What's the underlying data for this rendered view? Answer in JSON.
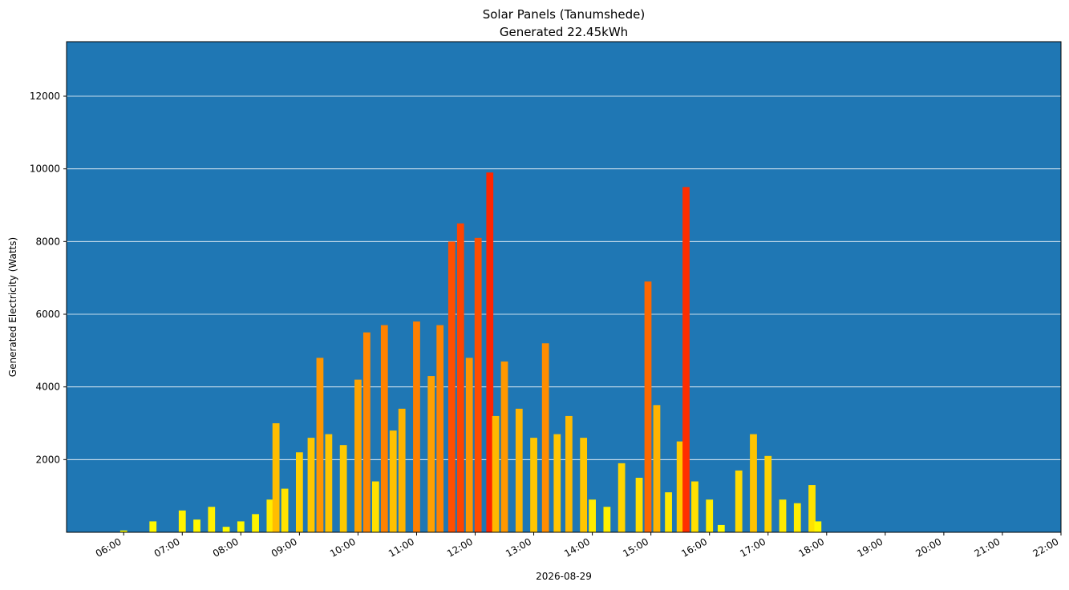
{
  "chart_data": {
    "type": "bar",
    "title": "Solar Panels (Tanumshede)",
    "subtitle": "Generated 22.45kWh",
    "xlabel": "2026-08-29",
    "ylabel": "Generated Electricity (Watts)",
    "ylim": [
      0,
      13500
    ],
    "yticks": [
      "2000",
      "4000",
      "6000",
      "8000",
      "10000",
      "12000"
    ],
    "xticks": [
      "06:00",
      "07:00",
      "08:00",
      "09:00",
      "10:00",
      "11:00",
      "12:00",
      "13:00",
      "14:00",
      "15:00",
      "16:00",
      "17:00",
      "18:00",
      "19:00",
      "20:00",
      "21:00",
      "22:00"
    ],
    "xlim_hours": [
      5.025,
      22.0
    ],
    "background_color": "#1f77b4",
    "grid": "horizontal",
    "bar_colormap": "yellow-to-red by value",
    "series": [
      {
        "x_hours": [
          6.0,
          6.5,
          7.0,
          7.25,
          7.5,
          7.75,
          8.0,
          8.25,
          8.5,
          8.6,
          8.75,
          9.0,
          9.2,
          9.35,
          9.5,
          9.75,
          10.0,
          10.15,
          10.3,
          10.45,
          10.6,
          10.75,
          11.0,
          11.25,
          11.4,
          11.6,
          11.75,
          11.9,
          12.05,
          12.25,
          12.35,
          12.5,
          12.75,
          13.0,
          13.2,
          13.4,
          13.6,
          13.85,
          14.0,
          14.25,
          14.5,
          14.8,
          14.95,
          15.1,
          15.3,
          15.5,
          15.6,
          15.75,
          16.0,
          16.2,
          16.5,
          16.75,
          17.0,
          17.25,
          17.5,
          17.75,
          17.85
        ],
        "values": [
          50,
          300,
          600,
          350,
          700,
          150,
          300,
          500,
          900,
          3000,
          1200,
          2200,
          2600,
          4800,
          2700,
          2400,
          4200,
          5500,
          1400,
          5700,
          2800,
          3400,
          5800,
          4300,
          5700,
          8000,
          8500,
          4800,
          8100,
          9900,
          3200,
          4700,
          3400,
          2600,
          5200,
          2700,
          3200,
          2600,
          900,
          700,
          1900,
          1500,
          6900,
          3500,
          1100,
          2500,
          9500,
          1400,
          900,
          200,
          1700,
          2700,
          2100,
          900,
          800,
          1300,
          300
        ]
      }
    ]
  }
}
